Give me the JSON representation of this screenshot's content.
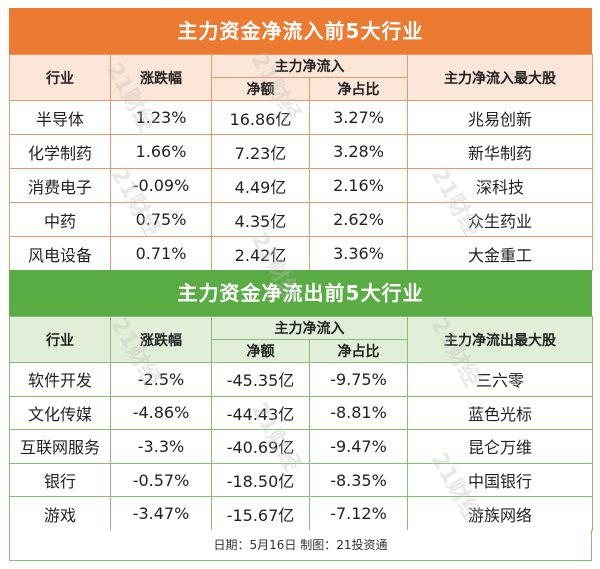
{
  "inflow": {
    "title": "主力资金净流入前5大行业",
    "headers": {
      "industry": "行业",
      "change": "涨跌幅",
      "net_group": "主力净流入",
      "net_amount": "净额",
      "net_ratio": "净占比",
      "top_stock": "主力净流入最大股"
    },
    "rows": [
      {
        "industry": "半导体",
        "change": "1.23%",
        "amount": "16.86亿",
        "ratio": "3.27%",
        "stock": "兆易创新"
      },
      {
        "industry": "化学制药",
        "change": "1.66%",
        "amount": "7.23亿",
        "ratio": "3.28%",
        "stock": "新华制药"
      },
      {
        "industry": "消费电子",
        "change": "-0.09%",
        "amount": "4.49亿",
        "ratio": "2.16%",
        "stock": "深科技"
      },
      {
        "industry": "中药",
        "change": "0.75%",
        "amount": "4.35亿",
        "ratio": "2.62%",
        "stock": "众生药业"
      },
      {
        "industry": "风电设备",
        "change": "0.71%",
        "amount": "2.42亿",
        "ratio": "3.36%",
        "stock": "大金重工"
      }
    ]
  },
  "outflow": {
    "title": "主力资金净流出前5大行业",
    "headers": {
      "industry": "行业",
      "change": "涨跌幅",
      "net_group": "主力净流入",
      "net_amount": "净额",
      "net_ratio": "净占比",
      "top_stock": "主力净流出最大股"
    },
    "rows": [
      {
        "industry": "软件开发",
        "change": "-2.5%",
        "amount": "-45.35亿",
        "ratio": "-9.75%",
        "stock": "三六零"
      },
      {
        "industry": "文化传媒",
        "change": "-4.86%",
        "amount": "-44.43亿",
        "ratio": "-8.81%",
        "stock": "蓝色光标"
      },
      {
        "industry": "互联网服务",
        "change": "-3.3%",
        "amount": "-40.69亿",
        "ratio": "-9.47%",
        "stock": "昆仑万维"
      },
      {
        "industry": "银行",
        "change": "-0.57%",
        "amount": "-18.50亿",
        "ratio": "-8.35%",
        "stock": "中国银行"
      },
      {
        "industry": "游戏",
        "change": "-3.47%",
        "amount": "-15.67亿",
        "ratio": "-7.12%",
        "stock": "游族网络"
      }
    ]
  },
  "footer": "日期：5月16日 制图：21投资通",
  "watermark": "21财经",
  "colors": {
    "inflow_accent": "#ec7a30",
    "outflow_accent": "#5aac44"
  }
}
